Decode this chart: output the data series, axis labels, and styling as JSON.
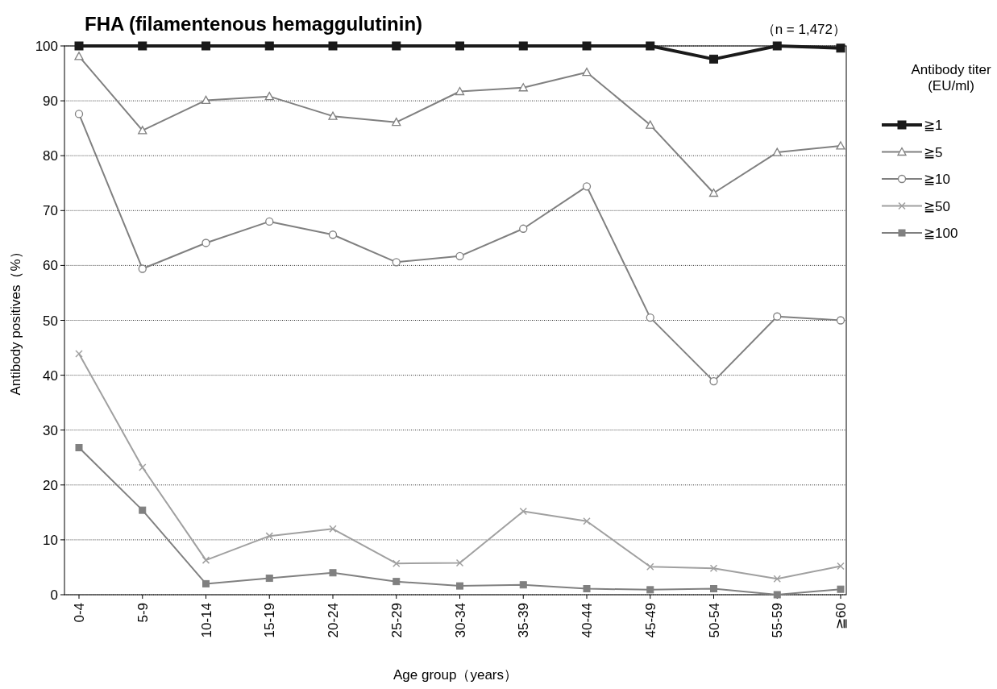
{
  "chart_data": {
    "type": "line",
    "title": "FHA (filamentenous hemaggulutinin)",
    "annotations": [
      "（n = 1,472）"
    ],
    "xlabel": "Age group（years）",
    "ylabel": "Antibody positives（%）",
    "legend_title": "Antibody titer\n(EU/ml)",
    "legend": "right",
    "grid": "y",
    "line_style": "solid",
    "categories": [
      "0-4",
      "5-9",
      "10-14",
      "15-19",
      "20-24",
      "25-29",
      "30-34",
      "35-39",
      "40-44",
      "45-49",
      "50-54",
      "55-59",
      "≧60"
    ],
    "ylim": [
      0,
      100
    ],
    "yticks": [
      0,
      10,
      20,
      30,
      40,
      50,
      60,
      70,
      80,
      90,
      100
    ],
    "series": [
      {
        "name": "≧1",
        "color": "#1a1a1a",
        "marker": "square",
        "values": [
          100,
          100,
          100,
          100,
          100,
          100,
          100,
          100,
          100,
          100,
          97.6,
          100,
          99.6
        ]
      },
      {
        "name": "≧5",
        "color": "#808080",
        "marker": "triangle",
        "values": [
          98.1,
          84.6,
          90.1,
          90.8,
          87.2,
          86.1,
          91.7,
          92.4,
          95.2,
          85.6,
          73.2,
          80.6,
          81.8
        ]
      },
      {
        "name": "≧10",
        "color": "#808080",
        "marker": "circle",
        "values": [
          87.6,
          59.4,
          64.1,
          68.0,
          65.6,
          60.6,
          61.7,
          66.7,
          74.4,
          50.5,
          38.9,
          50.7,
          50.0
        ]
      },
      {
        "name": "≧50",
        "color": "#a0a0a0",
        "marker": "cross",
        "values": [
          43.9,
          23.2,
          6.3,
          10.7,
          12.0,
          5.7,
          5.8,
          15.2,
          13.4,
          5.1,
          4.8,
          2.9,
          5.2
        ]
      },
      {
        "name": "≧100",
        "color": "#808080",
        "marker": "square",
        "values": [
          26.8,
          15.4,
          2.0,
          3.0,
          4.0,
          2.4,
          1.6,
          1.8,
          1.1,
          0.9,
          1.1,
          0.0,
          1.0
        ]
      }
    ]
  }
}
